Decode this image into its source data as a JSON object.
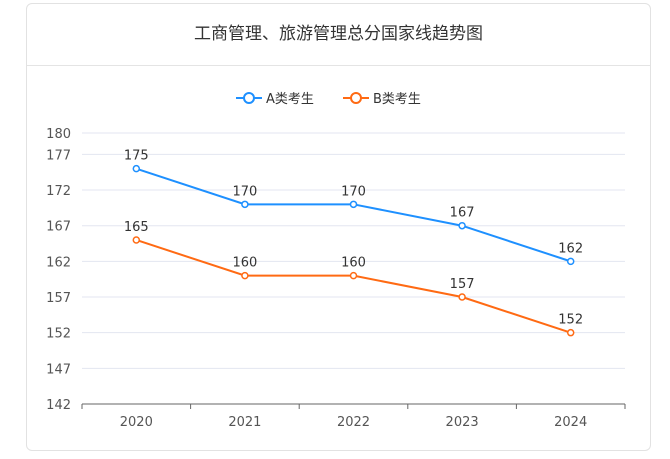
{
  "chart_data": {
    "type": "line",
    "title": "工商管理、旅游管理总分国家线趋势图",
    "categories": [
      "2020",
      "2021",
      "2022",
      "2023",
      "2024"
    ],
    "series": [
      {
        "name": "A类考生",
        "values": [
          175,
          170,
          170,
          167,
          162
        ],
        "color": "#1e90ff"
      },
      {
        "name": "B类考生",
        "values": [
          165,
          160,
          160,
          157,
          152
        ],
        "color": "#ff6a13"
      }
    ],
    "yticks": [
      142,
      147,
      152,
      157,
      162,
      167,
      172,
      177,
      180
    ],
    "ylim": [
      142,
      180
    ],
    "grid": true,
    "legend": "top-center",
    "data_labels": true
  }
}
